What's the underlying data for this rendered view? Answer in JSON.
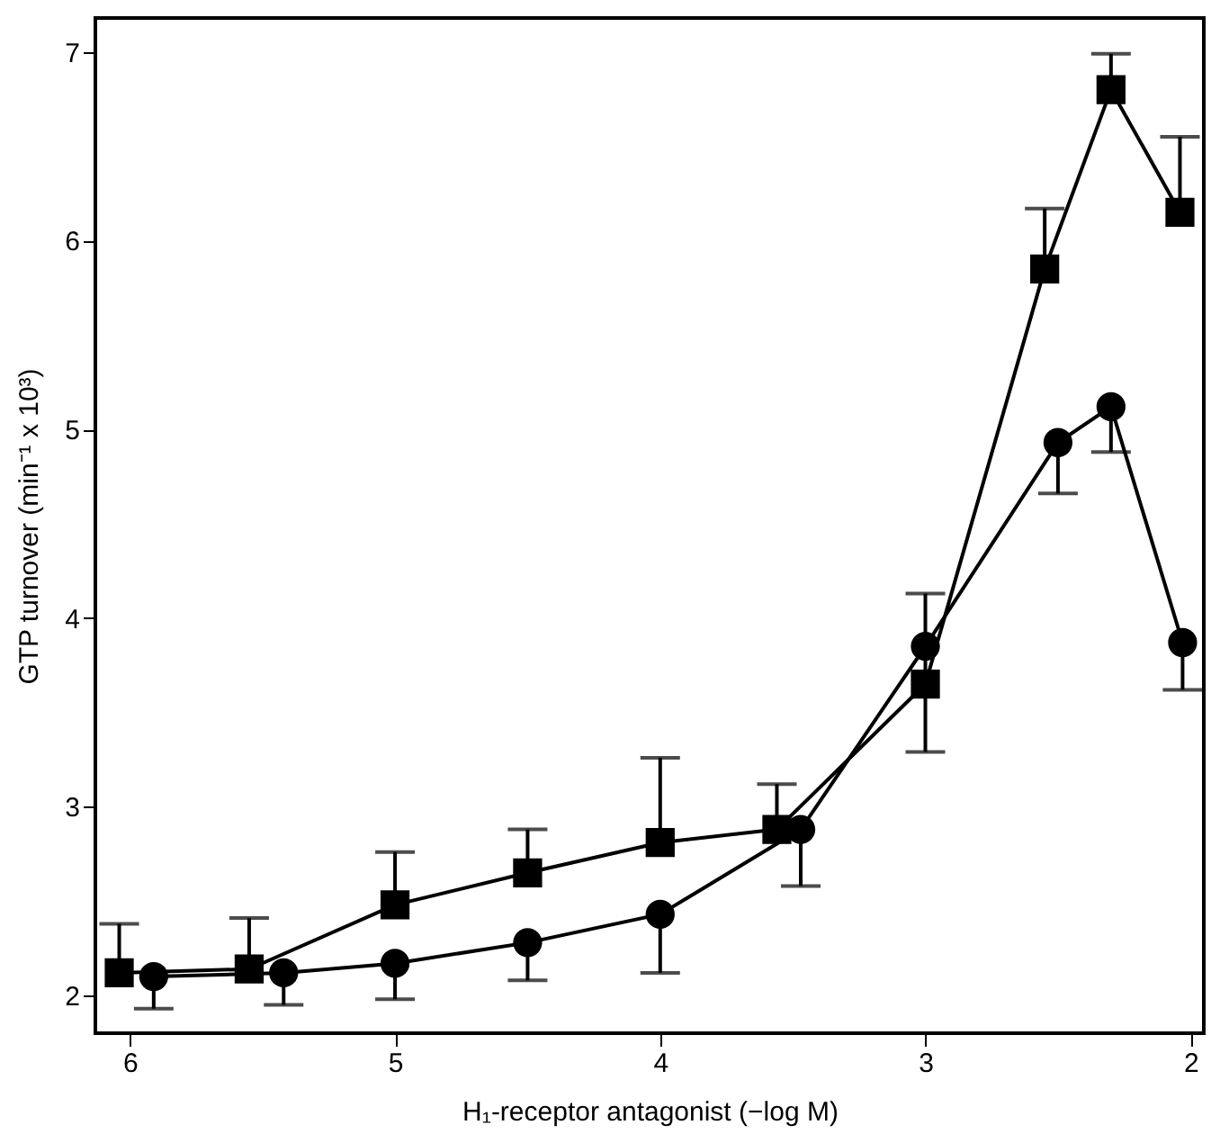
{
  "chart_data": {
    "type": "line",
    "xlabel": "H₁-receptor antagonist (−log M)",
    "ylabel": "GTP turnover (min⁻¹ x 10³)",
    "xlim": [
      6.13,
      1.95
    ],
    "xticks": [
      6,
      5,
      4,
      3,
      2
    ],
    "ylim": [
      1.8,
      7.18
    ],
    "yticks": [
      2,
      3,
      4,
      5,
      6,
      7
    ],
    "grid": false,
    "line_style": "solid",
    "series": [
      {
        "marker": "square",
        "color": "#000000",
        "x": [
          6.04,
          5.55,
          5.0,
          4.5,
          4.0,
          3.56,
          3.0,
          2.55,
          2.3,
          2.04
        ],
        "values": [
          2.12,
          2.14,
          2.48,
          2.65,
          2.81,
          2.88,
          3.65,
          5.85,
          6.8,
          6.15
        ],
        "errors": [
          [
            2.12,
            2.38
          ],
          [
            2.14,
            2.41
          ],
          [
            2.48,
            2.76
          ],
          [
            2.65,
            2.88
          ],
          [
            2.81,
            3.26
          ],
          [
            2.88,
            3.12
          ],
          [
            3.29,
            4.13
          ],
          [
            5.85,
            6.17
          ],
          [
            6.8,
            6.99
          ],
          [
            6.15,
            6.55
          ]
        ]
      },
      {
        "marker": "circle",
        "color": "#000000",
        "x": [
          5.91,
          5.42,
          5.0,
          4.5,
          4.0,
          3.47,
          3.0,
          2.5,
          2.3,
          2.03
        ],
        "values": [
          2.1,
          2.12,
          2.17,
          2.28,
          2.43,
          2.88,
          3.85,
          4.93,
          5.12,
          3.87
        ],
        "errors": [
          [
            1.93,
            2.1
          ],
          [
            1.95,
            2.12
          ],
          [
            1.98,
            2.17
          ],
          [
            2.08,
            2.28
          ],
          [
            2.12,
            2.43
          ],
          [
            2.58,
            2.88
          ],
          null,
          [
            4.66,
            4.93
          ],
          [
            4.88,
            5.12
          ],
          [
            3.62,
            3.87
          ]
        ]
      }
    ]
  }
}
